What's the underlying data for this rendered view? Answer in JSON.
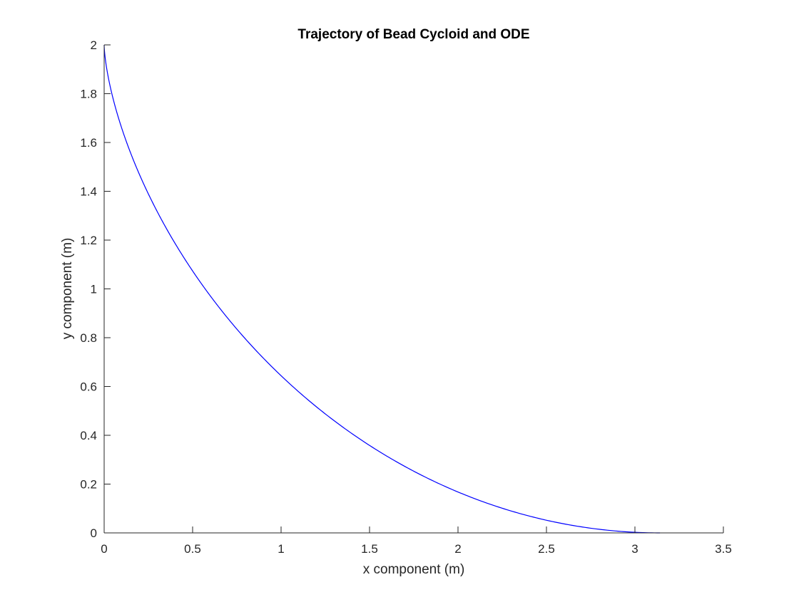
{
  "chart_data": {
    "type": "line",
    "title": "Trajectory of Bead Cycloid and ODE",
    "xlabel": "x component (m)",
    "ylabel": "y component (m)",
    "xlim": [
      0,
      3.5
    ],
    "ylim": [
      0,
      2
    ],
    "x_ticks": [
      "0",
      "0.5",
      "1",
      "1.5",
      "2",
      "2.5",
      "3",
      "3.5"
    ],
    "y_ticks": [
      "0",
      "0.2",
      "0.4",
      "0.6",
      "0.8",
      "1",
      "1.2",
      "1.4",
      "1.6",
      "1.8",
      "2"
    ],
    "grid": false,
    "series": [
      {
        "color": "#0000ff",
        "curve": "cycloid",
        "radius": 1,
        "theta_range": [
          0,
          3.14159
        ],
        "x": [
          0,
          0.002,
          0.02,
          0.06,
          0.13,
          0.24,
          0.38,
          0.56,
          0.76,
          0.99,
          1.24,
          1.51,
          1.79,
          2.07,
          2.33,
          2.56,
          2.76,
          2.92,
          3.03,
          3.1,
          3.13,
          3.14
        ],
        "y": [
          2,
          1.9,
          1.79,
          1.68,
          1.56,
          1.42,
          1.28,
          1.14,
          0.99,
          0.84,
          0.69,
          0.55,
          0.42,
          0.3,
          0.2,
          0.12,
          0.06,
          0.03,
          0.01,
          0.002,
          0.0003,
          0
        ]
      }
    ],
    "colors": {
      "axes": "#262626",
      "line": "#0000ff",
      "background": "#ffffff"
    }
  }
}
